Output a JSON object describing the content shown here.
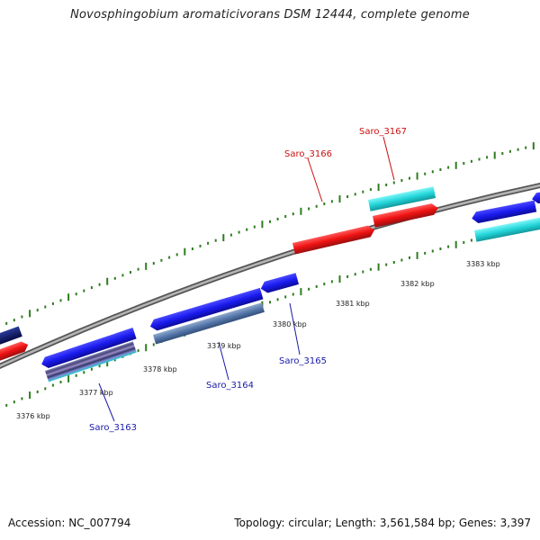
{
  "title": "Novosphingobium aromaticivorans DSM 12444, complete genome",
  "footer": {
    "accession": "Accession: NC_007794",
    "summary": "Topology: circular; Length: 3,561,584 bp; Genes: 3,397"
  },
  "colors": {
    "forward_gene": "#1a1aee",
    "reverse_gene": "#2244dd",
    "red_gene": "#ee1111",
    "cyan_gene": "#22dde0",
    "steel_gene": "#5577aa",
    "navy_gene": "#0a1a66",
    "tick": "#2e7d1e",
    "backbone": "#8a8a8a",
    "label_blue": "#1a1aaa",
    "label_red": "#cc1111"
  },
  "scale_labels": [
    "3376 kbp",
    "3377 kbp",
    "3378 kbp",
    "3379 kbp",
    "3380 kbp",
    "3381 kbp",
    "3382 kbp",
    "3383 kbp"
  ],
  "gene_labels": [
    {
      "name": "Saro_3163",
      "color": "blue"
    },
    {
      "name": "Saro_3164",
      "color": "blue"
    },
    {
      "name": "Saro_3165",
      "color": "blue"
    },
    {
      "name": "Saro_3166",
      "color": "red"
    },
    {
      "name": "Saro_3167",
      "color": "red"
    }
  ]
}
